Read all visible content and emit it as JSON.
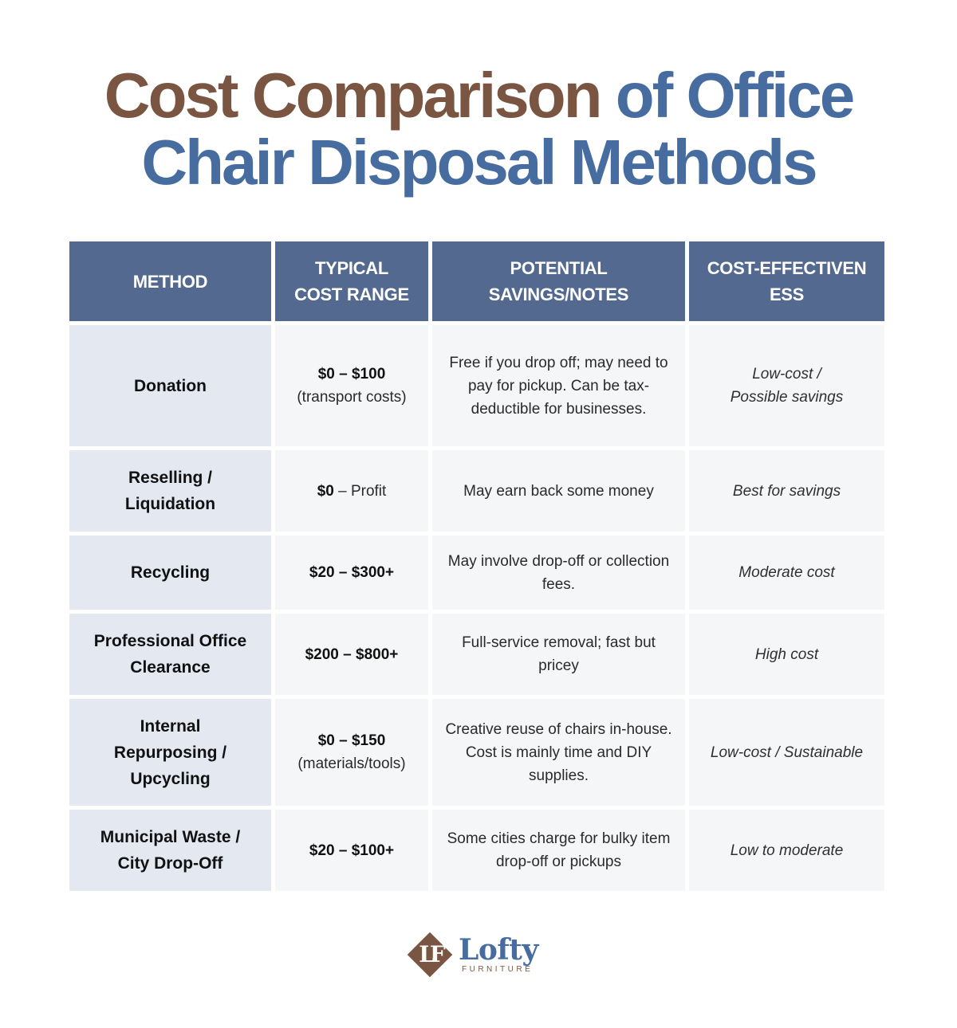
{
  "title": {
    "part1": "Cost Comparison",
    "part2": "of Office",
    "line2": "Chair Disposal Methods"
  },
  "colors": {
    "title_brown": "#7a5642",
    "title_blue": "#476da0",
    "header_bg": "#53698f",
    "method_bg": "#e3e8f1",
    "cell_bg": "#f5f6f7"
  },
  "table": {
    "headers": [
      "METHOD",
      "TYPICAL COST RANGE",
      "POTENTIAL SAVINGS/NOTES",
      "COST-EFFECTIVENESS"
    ],
    "rows": [
      {
        "method": "Donation",
        "cost": "$0 – $100",
        "cost_suffix": "",
        "cost_note": "(transport costs)",
        "notes": "Free if you drop off; may need to pay for pickup. Can be tax-deductible for businesses.",
        "effectiveness": "Low-cost / Possible savings"
      },
      {
        "method": "Reselling / Liquidation",
        "cost": "$0",
        "cost_suffix": " – Profit",
        "cost_note": "",
        "notes": "May earn back some money",
        "effectiveness": "Best for savings"
      },
      {
        "method": "Recycling",
        "cost": "$20 – $300+",
        "cost_suffix": "",
        "cost_note": "",
        "notes": "May involve drop-off or collection fees.",
        "effectiveness": "Moderate cost"
      },
      {
        "method": "Professional Office Clearance",
        "cost": "$200 – $800+",
        "cost_suffix": "",
        "cost_note": "",
        "notes": "Full-service removal; fast but pricey",
        "effectiveness": "High cost"
      },
      {
        "method": "Internal Repurposing / Upcycling",
        "cost": "$0 – $150",
        "cost_suffix": "",
        "cost_note": "(materials/tools)",
        "notes": "Creative reuse of chairs in-house. Cost is mainly time and DIY supplies.",
        "effectiveness": "Low-cost / Sustainable"
      },
      {
        "method": "Municipal Waste / City Drop-Off",
        "cost": "$20 – $100+",
        "cost_suffix": "",
        "cost_note": "",
        "notes": "Some cities charge for bulky item drop-off or pickups",
        "effectiveness": "Low to moderate"
      }
    ]
  },
  "logo": {
    "monogram": "LF",
    "name": "Lofty",
    "tagline": "FURNITURE"
  }
}
